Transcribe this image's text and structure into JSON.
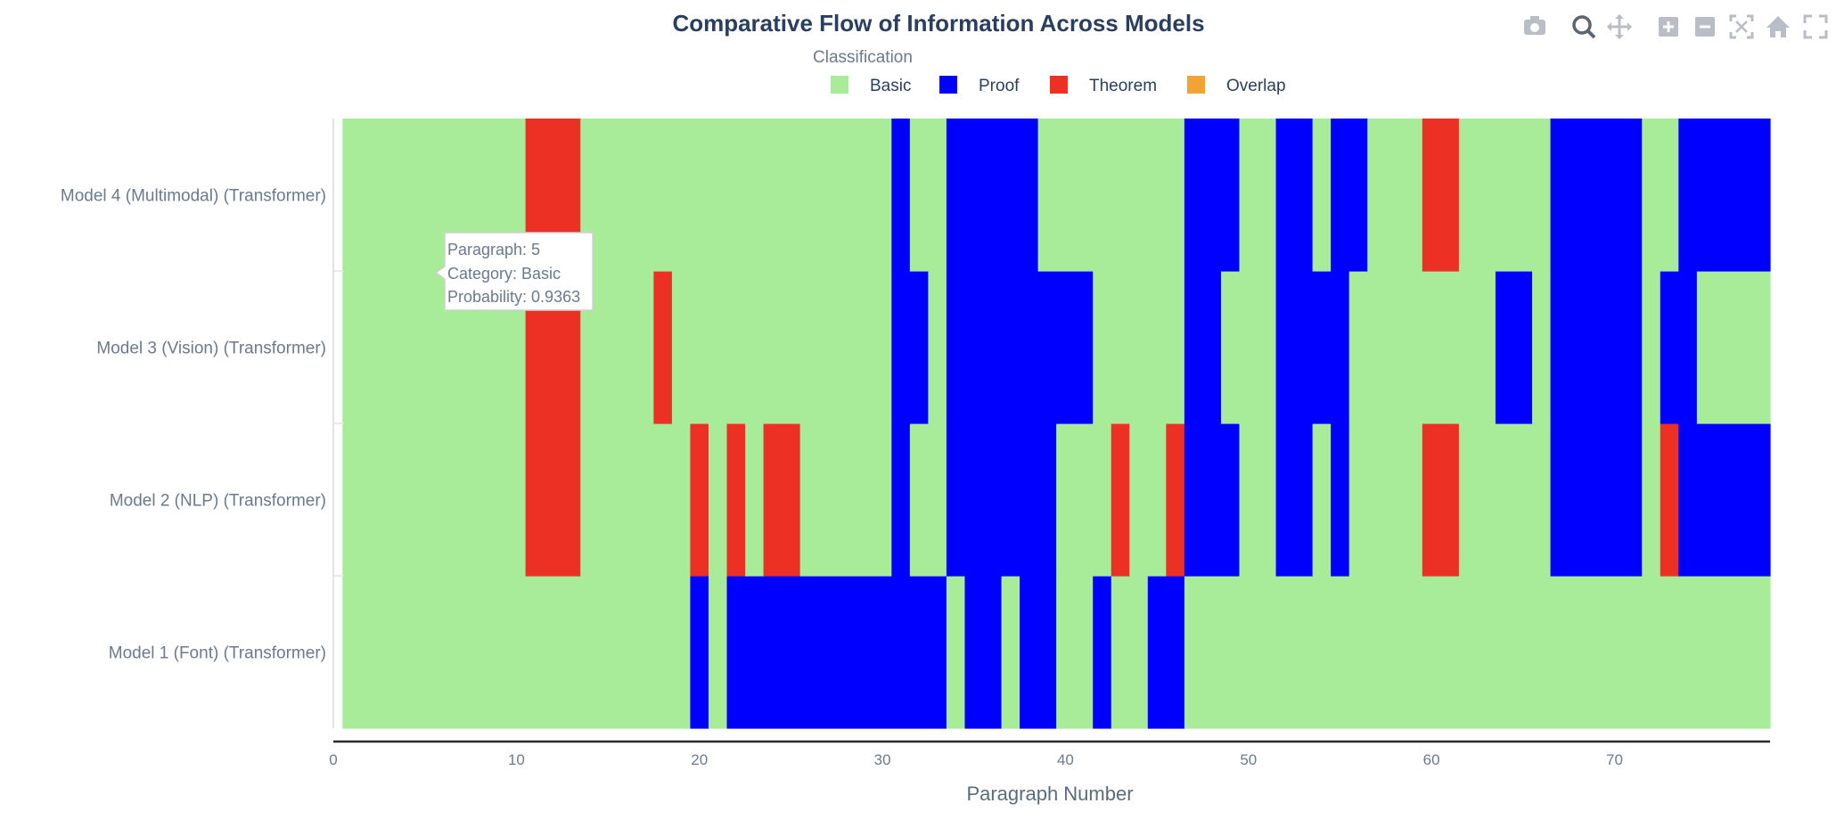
{
  "modebar": {
    "buttons": [
      {
        "name": "camera-icon",
        "title": "Download plot as png"
      },
      {
        "name": "zoom-icon",
        "title": "Zoom"
      },
      {
        "name": "pan-icon",
        "title": "Pan"
      },
      {
        "name": "zoom-in-icon",
        "title": "Zoom in"
      },
      {
        "name": "zoom-out-icon",
        "title": "Zoom out"
      },
      {
        "name": "autoscale-icon",
        "title": "Autoscale"
      },
      {
        "name": "home-icon",
        "title": "Reset axes"
      },
      {
        "name": "fullscreen-icon",
        "title": "Full screen"
      }
    ]
  },
  "tooltip": {
    "line1": "Paragraph: 5",
    "line2": "Category: Basic",
    "line3": "Probability: 0.9363"
  },
  "chart_data": {
    "type": "heatmap",
    "title": "Comparative Flow of Information Across Models",
    "xlabel": "Paragraph Number",
    "ylabel": "",
    "xlim": [
      0,
      78.5
    ],
    "xticks": [
      0,
      10,
      20,
      30,
      40,
      50,
      60,
      70
    ],
    "legend": {
      "title": "Classification",
      "position": "top",
      "entries": [
        {
          "label": "Basic",
          "color": "#a8eb98"
        },
        {
          "label": "Proof",
          "color": "#0000ff"
        },
        {
          "label": "Theorem",
          "color": "#ec3023"
        },
        {
          "label": "Overlap",
          "color": "#f1a336"
        }
      ]
    },
    "colors": {
      "Basic": "#a8eb98",
      "Proof": "#0000ff",
      "Theorem": "#ec3023",
      "Overlap": "#f1a336"
    },
    "models": [
      "Model 1 (Font) (Transformer)",
      "Model 2 (NLP) (Transformer)",
      "Model 3 (Vision) (Transformer)",
      "Model 4 (Multimodal) (Transformer)"
    ],
    "segments": {
      "Model 4 (Multimodal) (Transformer)": [
        {
          "from": 0.5,
          "to": 10.5,
          "category": "Basic"
        },
        {
          "from": 10.5,
          "to": 13.5,
          "category": "Theorem"
        },
        {
          "from": 13.5,
          "to": 30.5,
          "category": "Basic"
        },
        {
          "from": 30.5,
          "to": 31.5,
          "category": "Proof"
        },
        {
          "from": 31.5,
          "to": 33.5,
          "category": "Basic"
        },
        {
          "from": 33.5,
          "to": 38.5,
          "category": "Proof"
        },
        {
          "from": 38.5,
          "to": 46.5,
          "category": "Basic"
        },
        {
          "from": 46.5,
          "to": 49.5,
          "category": "Proof"
        },
        {
          "from": 49.5,
          "to": 51.5,
          "category": "Basic"
        },
        {
          "from": 51.5,
          "to": 53.5,
          "category": "Proof"
        },
        {
          "from": 53.5,
          "to": 54.5,
          "category": "Basic"
        },
        {
          "from": 54.5,
          "to": 56.5,
          "category": "Proof"
        },
        {
          "from": 56.5,
          "to": 59.5,
          "category": "Basic"
        },
        {
          "from": 59.5,
          "to": 61.5,
          "category": "Theorem"
        },
        {
          "from": 61.5,
          "to": 66.5,
          "category": "Basic"
        },
        {
          "from": 66.5,
          "to": 71.5,
          "category": "Proof"
        },
        {
          "from": 71.5,
          "to": 73.5,
          "category": "Basic"
        },
        {
          "from": 73.5,
          "to": 78.5,
          "category": "Proof"
        }
      ],
      "Model 3 (Vision) (Transformer)": [
        {
          "from": 0.5,
          "to": 10.5,
          "category": "Basic"
        },
        {
          "from": 10.5,
          "to": 13.5,
          "category": "Theorem"
        },
        {
          "from": 13.5,
          "to": 17.5,
          "category": "Basic"
        },
        {
          "from": 17.5,
          "to": 18.5,
          "category": "Theorem"
        },
        {
          "from": 18.5,
          "to": 30.5,
          "category": "Basic"
        },
        {
          "from": 30.5,
          "to": 32.5,
          "category": "Proof"
        },
        {
          "from": 32.5,
          "to": 33.5,
          "category": "Basic"
        },
        {
          "from": 33.5,
          "to": 41.5,
          "category": "Proof"
        },
        {
          "from": 41.5,
          "to": 46.5,
          "category": "Basic"
        },
        {
          "from": 46.5,
          "to": 48.5,
          "category": "Proof"
        },
        {
          "from": 48.5,
          "to": 51.5,
          "category": "Basic"
        },
        {
          "from": 51.5,
          "to": 55.5,
          "category": "Proof"
        },
        {
          "from": 55.5,
          "to": 63.5,
          "category": "Basic"
        },
        {
          "from": 63.5,
          "to": 65.5,
          "category": "Proof"
        },
        {
          "from": 65.5,
          "to": 66.5,
          "category": "Basic"
        },
        {
          "from": 66.5,
          "to": 71.5,
          "category": "Proof"
        },
        {
          "from": 71.5,
          "to": 72.5,
          "category": "Basic"
        },
        {
          "from": 72.5,
          "to": 74.5,
          "category": "Proof"
        },
        {
          "from": 74.5,
          "to": 78.5,
          "category": "Basic"
        }
      ],
      "Model 2 (NLP) (Transformer)": [
        {
          "from": 0.5,
          "to": 10.5,
          "category": "Basic"
        },
        {
          "from": 10.5,
          "to": 13.5,
          "category": "Theorem"
        },
        {
          "from": 13.5,
          "to": 19.5,
          "category": "Basic"
        },
        {
          "from": 19.5,
          "to": 20.5,
          "category": "Theorem"
        },
        {
          "from": 20.5,
          "to": 21.5,
          "category": "Basic"
        },
        {
          "from": 21.5,
          "to": 22.5,
          "category": "Theorem"
        },
        {
          "from": 22.5,
          "to": 23.5,
          "category": "Basic"
        },
        {
          "from": 23.5,
          "to": 25.5,
          "category": "Theorem"
        },
        {
          "from": 25.5,
          "to": 30.5,
          "category": "Basic"
        },
        {
          "from": 30.5,
          "to": 31.5,
          "category": "Proof"
        },
        {
          "from": 31.5,
          "to": 33.5,
          "category": "Basic"
        },
        {
          "from": 33.5,
          "to": 39.5,
          "category": "Proof"
        },
        {
          "from": 39.5,
          "to": 42.5,
          "category": "Basic"
        },
        {
          "from": 42.5,
          "to": 43.5,
          "category": "Theorem"
        },
        {
          "from": 43.5,
          "to": 45.5,
          "category": "Basic"
        },
        {
          "from": 45.5,
          "to": 46.5,
          "category": "Theorem"
        },
        {
          "from": 46.5,
          "to": 49.5,
          "category": "Proof"
        },
        {
          "from": 49.5,
          "to": 51.5,
          "category": "Basic"
        },
        {
          "from": 51.5,
          "to": 53.5,
          "category": "Proof"
        },
        {
          "from": 53.5,
          "to": 54.5,
          "category": "Basic"
        },
        {
          "from": 54.5,
          "to": 55.5,
          "category": "Proof"
        },
        {
          "from": 55.5,
          "to": 59.5,
          "category": "Basic"
        },
        {
          "from": 59.5,
          "to": 61.5,
          "category": "Theorem"
        },
        {
          "from": 61.5,
          "to": 66.5,
          "category": "Basic"
        },
        {
          "from": 66.5,
          "to": 71.5,
          "category": "Proof"
        },
        {
          "from": 71.5,
          "to": 72.5,
          "category": "Basic"
        },
        {
          "from": 72.5,
          "to": 73.5,
          "category": "Theorem"
        },
        {
          "from": 73.5,
          "to": 78.5,
          "category": "Proof"
        }
      ],
      "Model 1 (Font) (Transformer)": [
        {
          "from": 0.5,
          "to": 19.5,
          "category": "Basic"
        },
        {
          "from": 19.5,
          "to": 20.5,
          "category": "Proof"
        },
        {
          "from": 20.5,
          "to": 21.5,
          "category": "Basic"
        },
        {
          "from": 21.5,
          "to": 33.5,
          "category": "Proof"
        },
        {
          "from": 33.5,
          "to": 34.5,
          "category": "Basic"
        },
        {
          "from": 34.5,
          "to": 36.5,
          "category": "Proof"
        },
        {
          "from": 36.5,
          "to": 37.5,
          "category": "Basic"
        },
        {
          "from": 37.5,
          "to": 39.5,
          "category": "Proof"
        },
        {
          "from": 39.5,
          "to": 41.5,
          "category": "Basic"
        },
        {
          "from": 41.5,
          "to": 42.5,
          "category": "Proof"
        },
        {
          "from": 42.5,
          "to": 44.5,
          "category": "Basic"
        },
        {
          "from": 44.5,
          "to": 46.5,
          "category": "Proof"
        },
        {
          "from": 46.5,
          "to": 78.5,
          "category": "Basic"
        }
      ]
    },
    "hover_point": {
      "paragraph": 5,
      "model": "Model 3 (Vision) (Transformer)",
      "category": "Basic",
      "probability": 0.9363
    }
  }
}
